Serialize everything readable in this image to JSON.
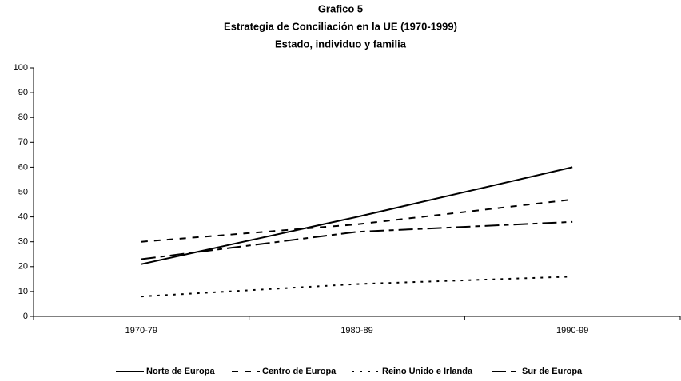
{
  "chart_data": {
    "type": "line",
    "title": [
      "Grafico 5",
      "Estrategia de Conciliación en la UE (1970-1999)",
      "Estado, individuo y familia"
    ],
    "categories": [
      "1970-79",
      "1980-89",
      "1990-99"
    ],
    "series": [
      {
        "name": "Norte de Europa",
        "color": "#000000",
        "values": [
          21,
          40,
          60
        ]
      },
      {
        "name": "Centro de Europa",
        "color": "#000000",
        "values": [
          30,
          37,
          47
        ]
      },
      {
        "name": "Reino Unido e Irlanda",
        "color": "#000000",
        "values": [
          8,
          13,
          16
        ]
      },
      {
        "name": "Sur de Europa",
        "color": "#000000",
        "values": [
          23,
          34,
          38
        ]
      }
    ],
    "ylim": [
      0,
      100
    ],
    "yticks": [
      0,
      10,
      20,
      30,
      40,
      50,
      60,
      70,
      80,
      90,
      100
    ],
    "legend": "bottom"
  }
}
